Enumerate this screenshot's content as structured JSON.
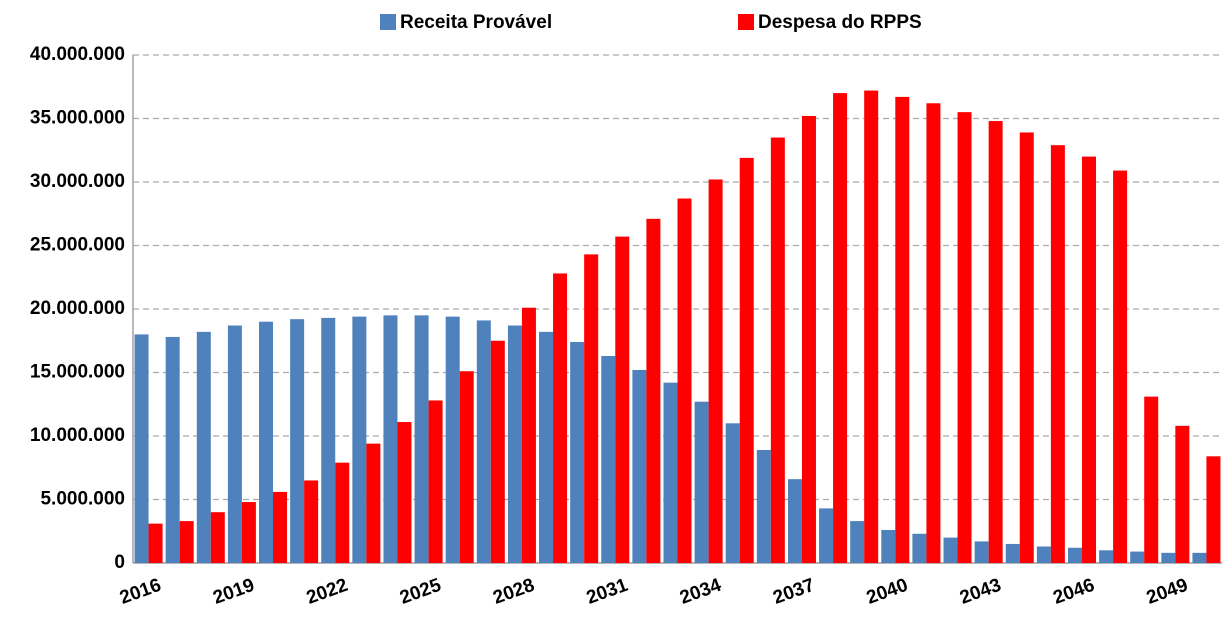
{
  "chart_data": {
    "type": "bar",
    "categories": [
      "2016",
      null,
      null,
      "2019",
      null,
      null,
      "2022",
      null,
      null,
      "2025",
      null,
      null,
      "2028",
      null,
      null,
      "2031",
      null,
      null,
      "2034",
      null,
      null,
      "2037",
      null,
      null,
      "2040",
      null,
      null,
      "2043",
      null,
      null,
      "2046",
      null,
      null,
      "2049",
      null
    ],
    "series": [
      {
        "name": "Receita Provável",
        "color": "#4f81bd",
        "values": [
          18000000,
          17800000,
          18200000,
          18700000,
          19000000,
          19200000,
          19300000,
          19400000,
          19500000,
          19500000,
          19400000,
          19100000,
          18700000,
          18200000,
          17400000,
          16300000,
          15200000,
          14200000,
          12700000,
          11000000,
          8900000,
          6600000,
          4300000,
          3300000,
          2600000,
          2300000,
          2000000,
          1700000,
          1500000,
          1300000,
          1200000,
          1000000,
          900000,
          800000,
          800000
        ]
      },
      {
        "name": "Despesa do RPPS",
        "color": "#ff0000",
        "values": [
          3100000,
          3300000,
          4000000,
          4800000,
          5600000,
          6500000,
          7900000,
          9400000,
          11100000,
          12800000,
          15100000,
          17500000,
          20100000,
          22800000,
          24300000,
          25700000,
          27100000,
          28700000,
          30200000,
          31900000,
          33500000,
          35200000,
          37000000,
          37200000,
          36700000,
          36200000,
          35500000,
          34800000,
          33900000,
          32900000,
          32000000,
          30900000,
          13100000,
          10800000,
          8400000
        ]
      }
    ],
    "ylim": [
      0,
      40000000
    ],
    "yticks": [
      0,
      {
        "value": 5000000,
        "label": "5.000.000"
      },
      {
        "value": 10000000,
        "label": "10.000.000"
      },
      {
        "value": 15000000,
        "label": "15.000.000"
      },
      {
        "value": 20000000,
        "label": "20.000.000"
      },
      {
        "value": 25000000,
        "label": "25.000.000"
      },
      {
        "value": 30000000,
        "label": "30.000.000"
      },
      {
        "value": 35000000,
        "label": "35.000.000"
      },
      {
        "value": 40000000,
        "label": "40.000.000"
      }
    ],
    "grid": true,
    "legend": "top"
  }
}
